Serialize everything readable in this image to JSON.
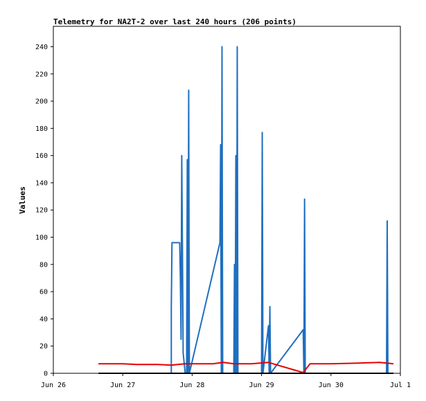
{
  "chart_data": {
    "type": "line",
    "title": "Telemetry for NA2T-2 over last 240 hours (206 points)",
    "xlabel": "",
    "ylabel": "Values",
    "x_tick_labels": [
      "Jun 26",
      "Jun 27",
      "Jun 28",
      "Jun 29",
      "Jun 30",
      "Jul 1"
    ],
    "x_ticks_day": [
      26,
      27,
      28,
      29,
      30,
      31
    ],
    "xlim_day": [
      26,
      31
    ],
    "ylim": [
      0,
      255
    ],
    "y_ticks": [
      0,
      20,
      40,
      60,
      80,
      100,
      120,
      140,
      160,
      180,
      200,
      220,
      240
    ],
    "grid": false,
    "series": [
      {
        "color": "#1f6fbf",
        "points": [
          [
            27.7,
            0
          ],
          [
            27.7,
            48
          ],
          [
            27.71,
            96
          ],
          [
            27.82,
            96
          ],
          [
            27.83,
            70
          ],
          [
            27.84,
            25
          ],
          [
            27.85,
            160
          ],
          [
            27.86,
            90
          ],
          [
            27.87,
            15
          ],
          [
            27.9,
            0
          ],
          [
            27.92,
            0
          ],
          [
            27.93,
            157
          ],
          [
            27.94,
            0
          ],
          [
            27.95,
            208
          ],
          [
            27.96,
            0
          ],
          [
            28.4,
            96
          ],
          [
            28.41,
            168
          ],
          [
            28.42,
            0
          ],
          [
            28.43,
            240
          ],
          [
            28.44,
            0
          ],
          [
            28.6,
            0
          ],
          [
            28.61,
            80
          ],
          [
            28.62,
            0
          ],
          [
            28.63,
            160
          ],
          [
            28.64,
            0
          ],
          [
            28.65,
            240
          ],
          [
            28.66,
            0
          ],
          [
            29.0,
            0
          ],
          [
            29.01,
            177
          ],
          [
            29.02,
            0
          ],
          [
            29.1,
            35
          ],
          [
            29.11,
            0
          ],
          [
            29.12,
            49
          ],
          [
            29.13,
            0
          ],
          [
            29.6,
            32
          ],
          [
            29.61,
            0
          ],
          [
            29.62,
            128
          ],
          [
            29.63,
            0
          ],
          [
            30.8,
            0
          ],
          [
            30.81,
            112
          ],
          [
            30.82,
            0
          ]
        ]
      },
      {
        "color": "#e60000",
        "points": [
          [
            26.65,
            7
          ],
          [
            27.0,
            7
          ],
          [
            27.2,
            6.5
          ],
          [
            27.5,
            6.5
          ],
          [
            27.7,
            6
          ],
          [
            27.9,
            7
          ],
          [
            28.3,
            7
          ],
          [
            28.45,
            8
          ],
          [
            28.6,
            7
          ],
          [
            28.85,
            7
          ],
          [
            29.1,
            8
          ],
          [
            29.6,
            0.5
          ],
          [
            29.7,
            7
          ],
          [
            29.9,
            7
          ],
          [
            30.0,
            7
          ],
          [
            30.4,
            7.5
          ],
          [
            30.7,
            8
          ],
          [
            30.9,
            7
          ]
        ]
      },
      {
        "color": "#000000",
        "points": [
          [
            26.65,
            0
          ],
          [
            30.9,
            0
          ]
        ]
      }
    ]
  }
}
